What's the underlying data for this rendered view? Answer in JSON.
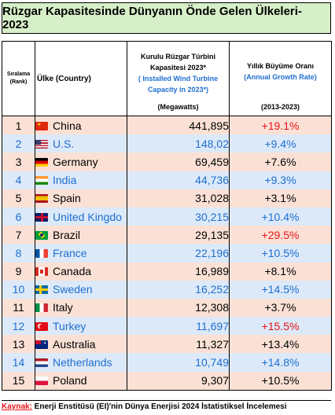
{
  "title": "Rüzgar Kapasitesinde Dünyanın Önde Gelen Ülkeleri- 2023",
  "headers": {
    "rank_1": "Sıralama",
    "rank_2": "(Rank)",
    "country": "Ülke (Country)",
    "cap_1": "Kurulu Rüzgar Türbini",
    "cap_2": "Kapasitesi 2023*",
    "cap_3": "( Installed Wind Turbine",
    "cap_4": "Capacity in 2023*)",
    "cap_units": "(Megawatts)",
    "growth_1": "Yıllık Büyüme Oranı",
    "growth_2": "(Annual Growth Rate)",
    "growth_period": "(2013-2023)"
  },
  "rows": [
    {
      "rank": "1",
      "country": "China",
      "flag": "china-flag-icon",
      "capacity": "441,895",
      "growth": "+19.1%",
      "highlight": true
    },
    {
      "rank": "2",
      "country": "U.S.",
      "flag": "us-flag-icon",
      "capacity": "148,02",
      "growth": "+9.4%",
      "highlight": false
    },
    {
      "rank": "3",
      "country": "Germany",
      "flag": "germany-flag-icon",
      "capacity": "69,459",
      "growth": "+7.6%",
      "highlight": false
    },
    {
      "rank": "4",
      "country": "India",
      "flag": "india-flag-icon",
      "capacity": "44,736",
      "growth": "+9.3%",
      "highlight": false
    },
    {
      "rank": "5",
      "country": "Spain",
      "flag": "spain-flag-icon",
      "capacity": "31,028",
      "growth": "+3.1%",
      "highlight": false
    },
    {
      "rank": "6",
      "country": "United Kingdo",
      "flag": "uk-flag-icon",
      "capacity": "30,215",
      "growth": "+10.4%",
      "highlight": false
    },
    {
      "rank": "7",
      "country": "Brazil",
      "flag": "brazil-flag-icon",
      "capacity": "29,135",
      "growth": "+29.5%",
      "highlight": true
    },
    {
      "rank": "8",
      "country": "France",
      "flag": "france-flag-icon",
      "capacity": "22,196",
      "growth": "+10.5%",
      "highlight": false
    },
    {
      "rank": "9",
      "country": "Canada",
      "flag": "canada-flag-icon",
      "capacity": "16,989",
      "growth": "+8.1%",
      "highlight": false
    },
    {
      "rank": "10",
      "country": "Sweden",
      "flag": "sweden-flag-icon",
      "capacity": "16,252",
      "growth": "+14.5%",
      "highlight": false
    },
    {
      "rank": "11",
      "country": "Italy",
      "flag": "italy-flag-icon",
      "capacity": "12,308",
      "growth": "+3.7%",
      "highlight": false
    },
    {
      "rank": "12",
      "country": "Turkey",
      "flag": "turkey-flag-icon",
      "capacity": "11,697",
      "growth": "+15.5%",
      "highlight": true
    },
    {
      "rank": "13",
      "country": "Australia",
      "flag": "australia-flag-icon",
      "capacity": "11,327",
      "growth": "+13.4%",
      "highlight": false
    },
    {
      "rank": "14",
      "country": "Netherlands",
      "flag": "netherlands-flag-icon",
      "capacity": "10,749",
      "growth": "+14.8%",
      "highlight": false
    },
    {
      "rank": "15",
      "country": "Poland",
      "flag": "poland-flag-icon",
      "capacity": "9,307",
      "growth": "+10.5%",
      "highlight": false
    }
  ],
  "source": {
    "label": "Kaynak:",
    "text": " Enerji Enstitüsü (EI)'nin Dünya Enerjisi 2024 İstatistiksel İncelemesi"
  },
  "colors": {
    "title_bg": "#d7efc8",
    "row_pink": "#fbe1d5",
    "row_blue": "#dce9f8",
    "highlight_red": "#e8151b",
    "header_blue": "#1f6fd1"
  }
}
